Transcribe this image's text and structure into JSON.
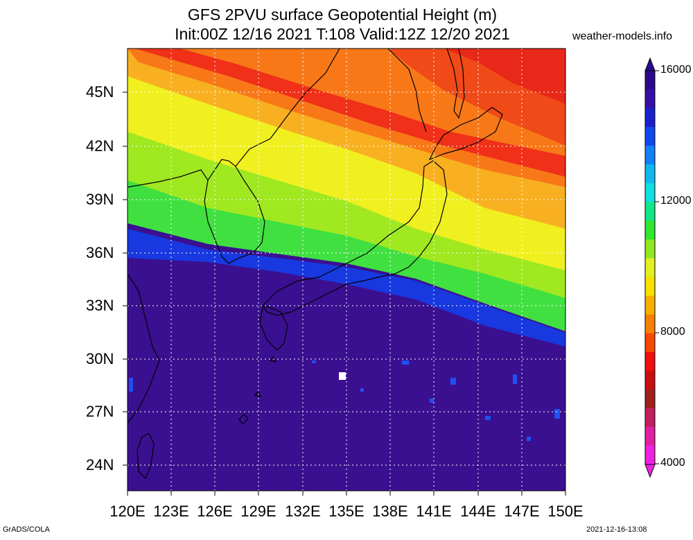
{
  "title_line1": "GFS 2PVU surface Geopotential Height (m)",
  "title_line2": "Init:00Z 12/16 2021 T:108 Valid:12Z 12/20 2021",
  "source": "weather-models.info",
  "footer_left": "GrADS/COLA",
  "footer_right": "2021-12-16-13:08",
  "lat_labels": [
    "45N",
    "42N",
    "39N",
    "36N",
    "33N",
    "30N",
    "27N",
    "24N"
  ],
  "lon_labels": [
    "120E",
    "123E",
    "126E",
    "129E",
    "132E",
    "135E",
    "138E",
    "141E",
    "144E",
    "147E",
    "150E"
  ],
  "colorbar": {
    "labels": [
      "16000",
      "12000",
      "8000",
      "4000"
    ],
    "colors": [
      "#2a0a8a",
      "#3510a8",
      "#1a20d0",
      "#1048f0",
      "#1480f8",
      "#10b8f0",
      "#10e0e0",
      "#10e888",
      "#30e830",
      "#90e820",
      "#e0f020",
      "#f8e000",
      "#f8b000",
      "#f88000",
      "#f84800",
      "#f01010",
      "#c81010",
      "#a02020",
      "#c02060",
      "#e020a0",
      "#f020e0"
    ],
    "key_colors": {
      "low": "#f020e0",
      "mid": "#f8b000",
      "high": "#2a0a8a"
    }
  },
  "map": {
    "field_colors": {
      "tropical": "#3a1090",
      "blue_band": "#1838e0",
      "green": "#40e040",
      "yellow": "#f0f020",
      "orange": "#f8b020",
      "red": "#f04018"
    }
  }
}
